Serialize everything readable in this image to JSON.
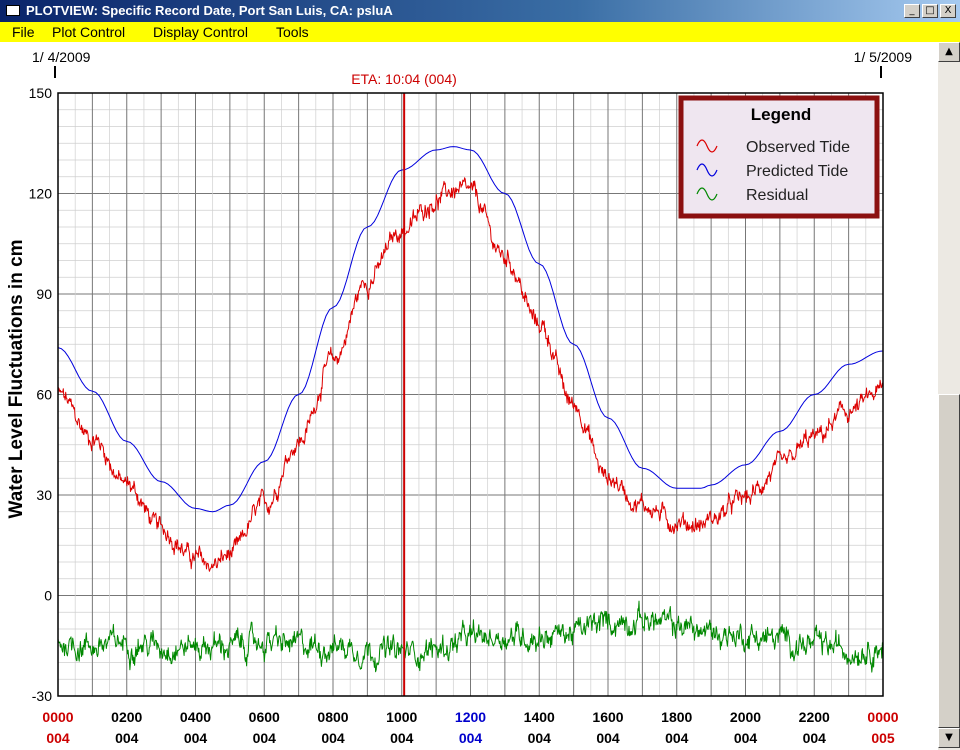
{
  "window": {
    "title": "PLOTVIEW: Specific Record Date, Port San Luis, CA: psluA",
    "minimize": "_",
    "maximize": "□",
    "close": "X"
  },
  "menu": {
    "items": [
      "File",
      "Plot Control",
      "Display Control",
      "Tools"
    ]
  },
  "scrollbar": {
    "up": "▲",
    "down": "▼"
  },
  "chart_data": {
    "type": "line",
    "ylabel": "Water Level Fluctuations in cm",
    "ylim": [
      -30,
      150
    ],
    "yticks": [
      -30,
      0,
      30,
      60,
      90,
      120,
      150
    ],
    "xlim_hours": [
      0,
      24
    ],
    "date_start": "1/ 4/2009",
    "date_end": "1/ 5/2009",
    "marker": {
      "label": "ETA: 10:04 (004)",
      "hour": 10.07,
      "color": "#cc0000"
    },
    "xtick_labels": [
      {
        "time": "0000",
        "day": "004",
        "time_color": "#cc0000",
        "day_color": "#cc0000"
      },
      {
        "time": "0200",
        "day": "004",
        "time_color": "#000000",
        "day_color": "#000000"
      },
      {
        "time": "0400",
        "day": "004",
        "time_color": "#000000",
        "day_color": "#000000"
      },
      {
        "time": "0600",
        "day": "004",
        "time_color": "#000000",
        "day_color": "#000000"
      },
      {
        "time": "0800",
        "day": "004",
        "time_color": "#000000",
        "day_color": "#000000"
      },
      {
        "time": "1000",
        "day": "004",
        "time_color": "#000000",
        "day_color": "#000000"
      },
      {
        "time": "1200",
        "day": "004",
        "time_color": "#0000cc",
        "day_color": "#0000cc"
      },
      {
        "time": "1400",
        "day": "004",
        "time_color": "#000000",
        "day_color": "#000000"
      },
      {
        "time": "1600",
        "day": "004",
        "time_color": "#000000",
        "day_color": "#000000"
      },
      {
        "time": "1800",
        "day": "004",
        "time_color": "#000000",
        "day_color": "#000000"
      },
      {
        "time": "2000",
        "day": "004",
        "time_color": "#000000",
        "day_color": "#000000"
      },
      {
        "time": "2200",
        "day": "004",
        "time_color": "#000000",
        "day_color": "#000000"
      },
      {
        "time": "0000",
        "day": "005",
        "time_color": "#cc0000",
        "day_color": "#cc0000"
      }
    ],
    "legend": {
      "title": "Legend",
      "placement": "top-right",
      "entries": [
        {
          "name": "Observed Tide",
          "color": "#dd0000"
        },
        {
          "name": "Predicted Tide",
          "color": "#0000dd"
        },
        {
          "name": "Residual",
          "color": "#008800"
        }
      ]
    },
    "series": [
      {
        "name": "Predicted Tide",
        "color": "#0000dd",
        "x": [
          0,
          1,
          2,
          3,
          4,
          4.5,
          5,
          6,
          7,
          8,
          9,
          10,
          11,
          11.5,
          12,
          13,
          14,
          15,
          16,
          17,
          18,
          18.7,
          19,
          20,
          21,
          22,
          23,
          24
        ],
        "y": [
          74,
          61,
          46,
          34,
          26,
          25,
          27,
          40,
          60,
          86,
          110,
          127,
          133,
          134,
          133,
          120,
          99,
          75,
          53,
          38,
          32,
          32,
          33,
          39,
          49,
          60,
          69,
          73
        ]
      },
      {
        "name": "Observed Tide",
        "color": "#dd0000",
        "x": [
          0,
          1,
          2,
          3,
          4,
          4.5,
          5,
          6,
          7,
          8,
          9,
          10,
          11,
          11.5,
          12,
          13,
          14,
          15,
          16,
          17,
          18,
          18.7,
          19,
          20,
          21,
          22,
          23,
          24
        ],
        "y": [
          60,
          47,
          33,
          20,
          11,
          9,
          12,
          27,
          46,
          70,
          94,
          109,
          118,
          121,
          120,
          101,
          81,
          57,
          35,
          27,
          22,
          21,
          23,
          29,
          38,
          47,
          55,
          61
        ]
      },
      {
        "name": "Residual",
        "color": "#008800",
        "x": [
          0,
          1,
          2,
          3,
          4,
          5,
          6,
          7,
          8,
          9,
          10,
          11,
          12,
          13,
          14,
          15,
          16,
          17,
          18,
          19,
          20,
          21,
          22,
          23,
          24
        ],
        "y": [
          -14,
          -15,
          -14,
          -15,
          -15,
          -15,
          -14,
          -15,
          -15,
          -16,
          -17,
          -16,
          -13,
          -12,
          -12,
          -11,
          -8,
          -7,
          -9,
          -11,
          -12,
          -13,
          -15,
          -16,
          -15
        ]
      }
    ]
  }
}
